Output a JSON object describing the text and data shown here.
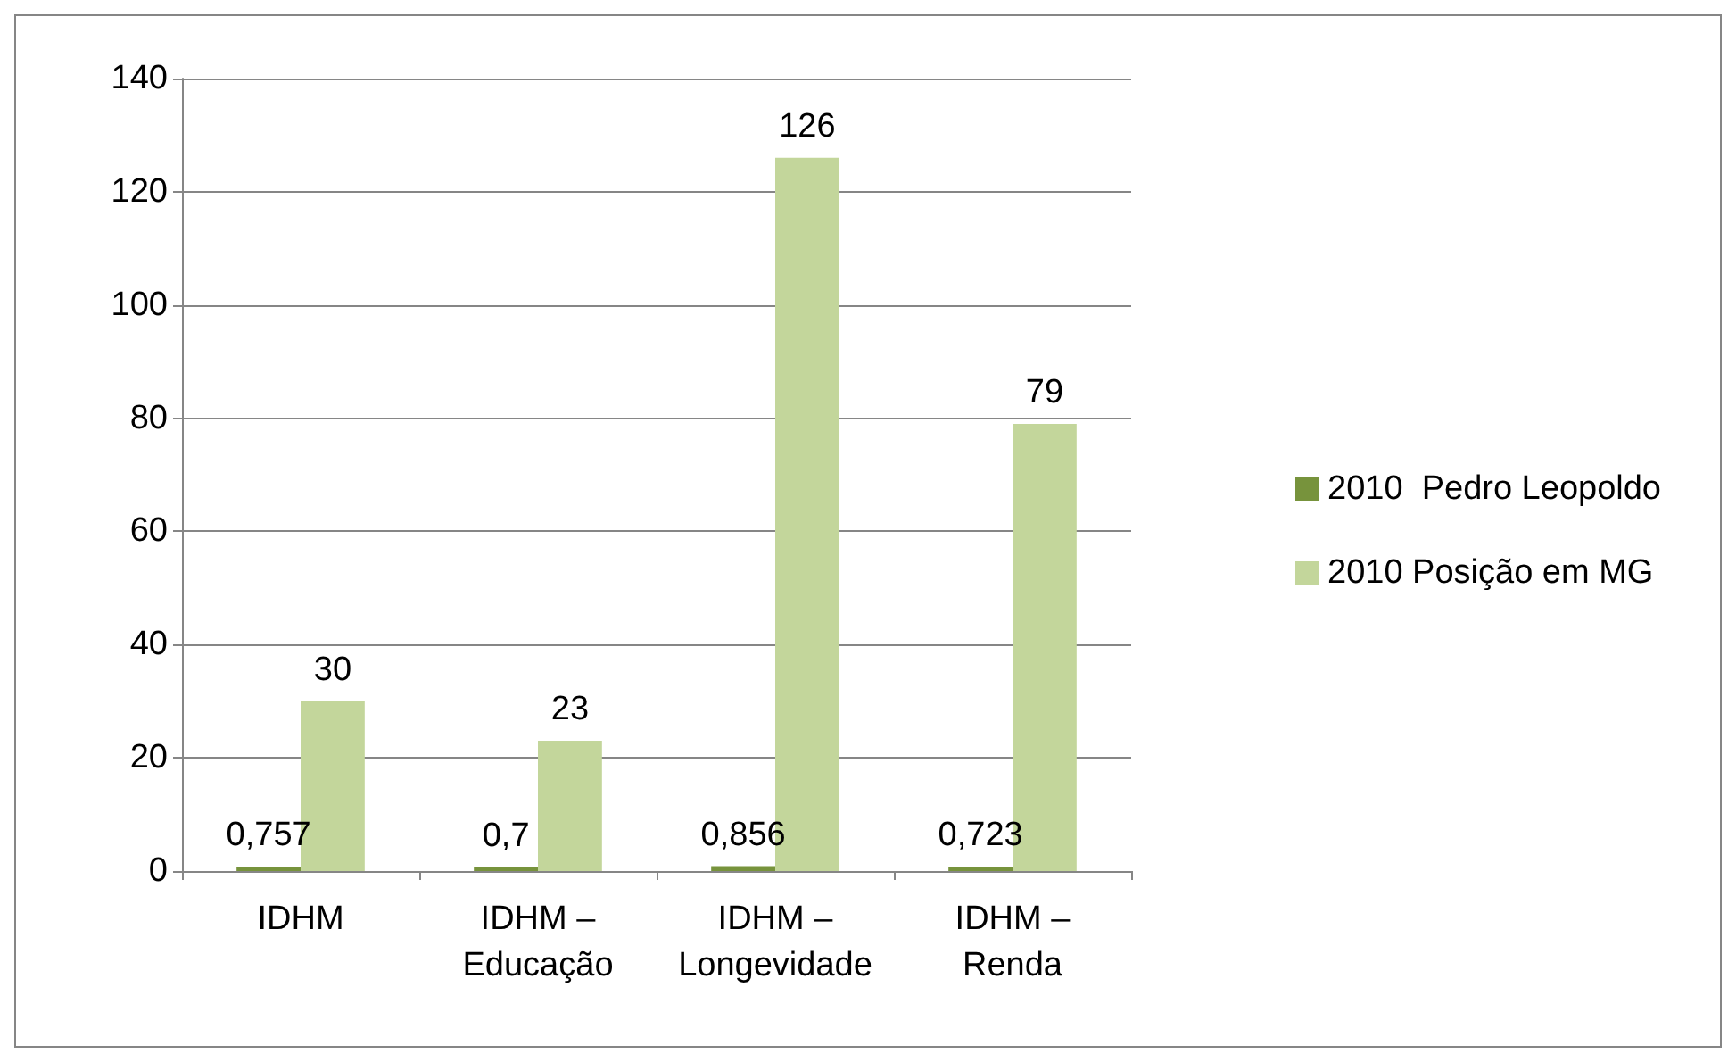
{
  "chart_data": {
    "type": "bar",
    "categories": [
      "IDHM",
      "IDHM –\nEducação",
      "IDHM –\nLongevidade",
      "IDHM –\nRenda"
    ],
    "series": [
      {
        "name": "2010  Pedro Leopoldo",
        "color": "#77933c",
        "values": [
          0.757,
          0.7,
          0.856,
          0.723
        ],
        "value_labels": [
          "0,757",
          "0,7",
          "0,856",
          "0,723"
        ]
      },
      {
        "name": "2010 Posição em MG",
        "color": "#c3d69b",
        "values": [
          30,
          23,
          126,
          79
        ],
        "value_labels": [
          "30",
          "23",
          "126",
          "79"
        ]
      }
    ],
    "ylim": [
      0,
      140
    ],
    "yticks": [
      0,
      20,
      40,
      60,
      80,
      100,
      120,
      140
    ],
    "grid": "y",
    "legend": "right"
  }
}
